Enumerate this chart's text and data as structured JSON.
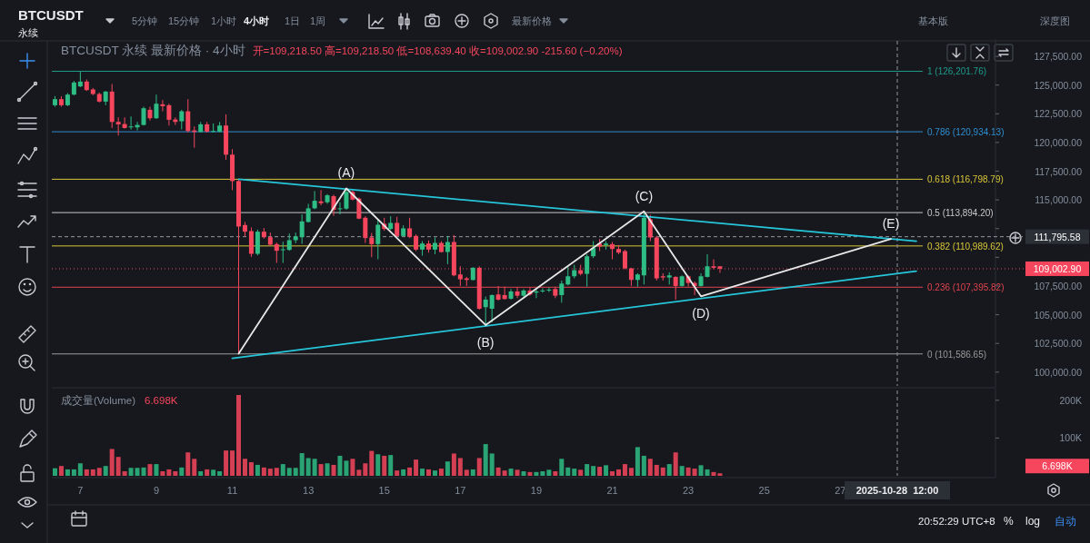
{
  "chart_data": [
    {
      "type": "candlestick",
      "title": "BTCUSDT 永续 最新价格 · 4小时",
      "subtitle": "开=109,218.50 高=109,218.50 低=108,639.40 收=109,002.90 -215.60 (−0.20%)",
      "tick_labels": "y",
      "xlim": [
        "2025-10-06T06:00",
        "2025-10-31T02:00"
      ],
      "ylim": [
        98800,
        128850
      ],
      "yticks": [
        {
          "value": 100000,
          "label": "100,000.00"
        },
        {
          "value": 102500,
          "label": "102,500.00"
        },
        {
          "value": 105000,
          "label": "105,000.00"
        },
        {
          "value": 107500,
          "label": "107,500.00"
        },
        {
          "value": 110000,
          "label": null
        },
        {
          "value": 112500,
          "label": null
        },
        {
          "value": 115000,
          "label": "115,000.00"
        },
        {
          "value": 117500,
          "label": "117,500.00"
        },
        {
          "value": 120000,
          "label": "120,000.00"
        },
        {
          "value": 122500,
          "label": "122,500.00"
        },
        {
          "value": 125000,
          "label": "125,000.00"
        },
        {
          "value": 127500,
          "label": "127,500.00"
        }
      ],
      "x": [
        "2025-10-06T08:00",
        "2025-10-06T12:00",
        "2025-10-06T16:00",
        "2025-10-06T20:00",
        "2025-10-07T00:00",
        "2025-10-07T04:00",
        "2025-10-07T08:00",
        "2025-10-07T12:00",
        "2025-10-07T16:00",
        "2025-10-07T20:00",
        "2025-10-08T00:00",
        "2025-10-08T04:00",
        "2025-10-08T08:00",
        "2025-10-08T12:00",
        "2025-10-08T16:00",
        "2025-10-08T20:00",
        "2025-10-09T00:00",
        "2025-10-09T04:00",
        "2025-10-09T08:00",
        "2025-10-09T12:00",
        "2025-10-09T16:00",
        "2025-10-09T20:00",
        "2025-10-10T00:00",
        "2025-10-10T04:00",
        "2025-10-10T08:00",
        "2025-10-10T12:00",
        "2025-10-10T16:00",
        "2025-10-10T20:00",
        "2025-10-11T00:00",
        "2025-10-11T04:00",
        "2025-10-11T08:00",
        "2025-10-11T12:00",
        "2025-10-11T16:00",
        "2025-10-11T20:00",
        "2025-10-12T00:00",
        "2025-10-12T04:00",
        "2025-10-12T08:00",
        "2025-10-12T12:00",
        "2025-10-12T16:00",
        "2025-10-12T20:00",
        "2025-10-13T00:00",
        "2025-10-13T04:00",
        "2025-10-13T08:00",
        "2025-10-13T12:00",
        "2025-10-13T16:00",
        "2025-10-13T20:00",
        "2025-10-14T00:00",
        "2025-10-14T04:00",
        "2025-10-14T08:00",
        "2025-10-14T12:00",
        "2025-10-14T16:00",
        "2025-10-14T20:00",
        "2025-10-15T00:00",
        "2025-10-15T04:00",
        "2025-10-15T08:00",
        "2025-10-15T12:00",
        "2025-10-15T16:00",
        "2025-10-15T20:00",
        "2025-10-16T00:00",
        "2025-10-16T04:00",
        "2025-10-16T08:00",
        "2025-10-16T12:00",
        "2025-10-16T16:00",
        "2025-10-16T20:00",
        "2025-10-17T00:00",
        "2025-10-17T04:00",
        "2025-10-17T08:00",
        "2025-10-17T12:00",
        "2025-10-17T16:00",
        "2025-10-17T20:00",
        "2025-10-18T00:00",
        "2025-10-18T04:00",
        "2025-10-18T08:00",
        "2025-10-18T12:00",
        "2025-10-18T16:00",
        "2025-10-18T20:00",
        "2025-10-19T00:00",
        "2025-10-19T04:00",
        "2025-10-19T08:00",
        "2025-10-19T12:00",
        "2025-10-19T16:00",
        "2025-10-19T20:00",
        "2025-10-20T00:00",
        "2025-10-20T04:00",
        "2025-10-20T08:00",
        "2025-10-20T12:00",
        "2025-10-20T16:00",
        "2025-10-20T20:00",
        "2025-10-21T00:00",
        "2025-10-21T04:00",
        "2025-10-21T08:00",
        "2025-10-21T12:00",
        "2025-10-21T16:00",
        "2025-10-21T20:00",
        "2025-10-22T00:00",
        "2025-10-22T04:00",
        "2025-10-22T08:00",
        "2025-10-22T12:00",
        "2025-10-22T16:00",
        "2025-10-22T20:00",
        "2025-10-23T00:00",
        "2025-10-23T04:00",
        "2025-10-23T08:00",
        "2025-10-23T12:00",
        "2025-10-23T16:00",
        "2025-10-23T20:00"
      ],
      "ohlc": [
        [
          123245,
          124037,
          123113,
          123773
        ],
        [
          123773,
          124037,
          123113,
          123245
        ],
        [
          123245,
          124301,
          123166,
          124169
        ],
        [
          124169,
          125357,
          124116,
          125225
        ],
        [
          124882,
          126150,
          124829,
          125304
        ],
        [
          125304,
          125489,
          124486,
          124565
        ],
        [
          124618,
          124750,
          124116,
          124222
        ],
        [
          124222,
          124354,
          123482,
          123562
        ],
        [
          123562,
          124486,
          123245,
          124433
        ],
        [
          124433,
          125093,
          121264,
          121792
        ],
        [
          121792,
          122188,
          120604,
          121581
        ],
        [
          121607,
          122188,
          121200,
          121264
        ],
        [
          121317,
          122267,
          121132,
          121396
        ],
        [
          121317,
          121792,
          121053,
          121528
        ],
        [
          121528,
          123113,
          121475,
          122980
        ],
        [
          122848,
          123113,
          121924,
          122109
        ],
        [
          122109,
          124169,
          122056,
          123377
        ],
        [
          123324,
          123694,
          122716,
          123166
        ],
        [
          123245,
          123377,
          121475,
          121977
        ],
        [
          122003,
          122188,
          121528,
          121792
        ],
        [
          121845,
          122848,
          121132,
          122716
        ],
        [
          122716,
          123773,
          120868,
          121000
        ],
        [
          121053,
          121396,
          119547,
          120921
        ],
        [
          120921,
          121792,
          120868,
          121581
        ],
        [
          121581,
          121792,
          120868,
          120947
        ],
        [
          120947,
          121660,
          120868,
          121000
        ],
        [
          120947,
          121792,
          120868,
          121475
        ],
        [
          121475,
          122452,
          118491,
          118940
        ],
        [
          118940,
          119415,
          115850,
          116642
        ],
        [
          116642,
          116774,
          101586.65,
          112680
        ],
        [
          112812,
          113077,
          111809,
          112232
        ],
        [
          112284,
          112601,
          110040,
          110304
        ],
        [
          110304,
          112416,
          110172,
          112232
        ],
        [
          112232,
          112548,
          111624,
          111756
        ],
        [
          111756,
          112152,
          111017,
          111096
        ],
        [
          111149,
          111281,
          109512,
          110568
        ],
        [
          110647,
          111360,
          109512,
          110700
        ],
        [
          110647,
          112073,
          110568,
          111492
        ],
        [
          111492,
          112152,
          111228,
          111809
        ],
        [
          111756,
          113737,
          111175,
          113130
        ],
        [
          113077,
          114661,
          113024,
          114265
        ],
        [
          114265,
          115771,
          114186,
          114925
        ],
        [
          114872,
          115850,
          114529,
          114714
        ],
        [
          114793,
          115507,
          114661,
          115401
        ],
        [
          115322,
          115454,
          113605,
          114133
        ],
        [
          114186,
          114793,
          113737,
          114265
        ],
        [
          114238,
          116007,
          114133,
          115690
        ],
        [
          115690,
          115822,
          114951,
          115030
        ],
        [
          115109,
          115215,
          113313,
          113366
        ],
        [
          113445,
          113577,
          111253,
          111676
        ],
        [
          111728,
          112125,
          110012,
          111148
        ],
        [
          111148,
          113313,
          109827,
          112838
        ],
        [
          112917,
          113445,
          112310,
          112468
        ],
        [
          112468,
          113577,
          112389,
          112996
        ],
        [
          112996,
          113524,
          111781,
          111861
        ],
        [
          111861,
          112785,
          111781,
          112521
        ],
        [
          112521,
          113445,
          111676,
          111781
        ],
        [
          111861,
          111993,
          110540,
          110672
        ],
        [
          110672,
          111412,
          110144,
          111200
        ],
        [
          111200,
          111465,
          110408,
          110672
        ],
        [
          110672,
          111729,
          110276,
          111253
        ],
        [
          111253,
          111412,
          110408,
          110461
        ],
        [
          110461,
          111861,
          109405,
          111333
        ],
        [
          111333,
          111940,
          108348,
          108427
        ],
        [
          108507,
          109220,
          107503,
          108084
        ],
        [
          108163,
          108295,
          107503,
          108031
        ],
        [
          108031,
          109141,
          107978,
          109088
        ],
        [
          109088,
          109220,
          105443,
          105522
        ],
        [
          105654,
          106579,
          103937,
          106315
        ],
        [
          105522,
          106763,
          104334,
          106711
        ],
        [
          106763,
          107503,
          106236,
          106315
        ],
        [
          106711,
          107450,
          106315,
          106368
        ],
        [
          106394,
          107239,
          106315,
          107028
        ],
        [
          107028,
          107371,
          106447,
          106658
        ],
        [
          106658,
          107239,
          106500,
          107107
        ],
        [
          107107,
          107371,
          106658,
          106763
        ],
        [
          106922,
          107239,
          106447,
          107028
        ],
        [
          107028,
          107292,
          106922,
          107107
        ],
        [
          107133,
          107371,
          106975,
          107186
        ],
        [
          107239,
          107450,
          106447,
          106658
        ],
        [
          106711,
          107978,
          106050,
          107714
        ],
        [
          107635,
          109220,
          107556,
          108348
        ],
        [
          108348,
          109352,
          108163,
          108876
        ],
        [
          108876,
          109352,
          108427,
          108560
        ],
        [
          108560,
          110276,
          107450,
          110091
        ],
        [
          110091,
          111412,
          109933,
          110804
        ],
        [
          111200,
          111597,
          110540,
          110936
        ],
        [
          111068,
          111412,
          110672,
          111200
        ],
        [
          111148,
          111333,
          109827,
          110725
        ],
        [
          110725,
          111068,
          110276,
          110408
        ],
        [
          110540,
          110672,
          108955,
          109035
        ],
        [
          109035,
          109088,
          107503,
          108031
        ],
        [
          108031,
          108612,
          107450,
          108507
        ],
        [
          108427,
          113973,
          107635,
          113445
        ],
        [
          113313,
          113709,
          111412,
          111728
        ],
        [
          111728,
          111861,
          107978,
          108163
        ],
        [
          108348,
          108612,
          107978,
          108242
        ],
        [
          108242,
          108691,
          107635,
          108427
        ],
        [
          108295,
          108348,
          106315,
          107503
        ],
        [
          107503,
          108427,
          107450,
          108348
        ],
        [
          108348,
          108427,
          107450,
          107767
        ],
        [
          107767,
          107899,
          106711,
          107503
        ],
        [
          107503,
          108612,
          107450,
          108348
        ],
        [
          108295,
          110276,
          108242,
          109220
        ],
        [
          109220,
          109827,
          108955,
          109088
        ],
        [
          109218.5,
          109218.5,
          108639.4,
          109002.9
        ]
      ],
      "colors": [
        "#2ebd85",
        "#f6465d",
        "#2ebd85",
        "#2ebd85",
        "#2ebd85",
        "#f6465d",
        "#f6465d",
        "#f6465d",
        "#2ebd85",
        "#f6465d",
        "#f6465d",
        "#f6465d",
        "#2ebd85",
        "#2ebd85",
        "#2ebd85",
        "#f6465d",
        "#2ebd85",
        "#f6465d",
        "#f6465d",
        "#f6465d",
        "#2ebd85",
        "#f6465d",
        "#f6465d",
        "#2ebd85",
        "#f6465d",
        "#2ebd85",
        "#2ebd85",
        "#f6465d",
        "#f6465d",
        "#f6465d",
        "#f6465d",
        "#f6465d",
        "#2ebd85",
        "#f6465d",
        "#f6465d",
        "#f6465d",
        "#2ebd85",
        "#2ebd85",
        "#2ebd85",
        "#2ebd85",
        "#2ebd85",
        "#2ebd85",
        "#f6465d",
        "#2ebd85",
        "#f6465d",
        "#2ebd85",
        "#2ebd85",
        "#f6465d",
        "#f6465d",
        "#f6465d",
        "#f6465d",
        "#2ebd85",
        "#f6465d",
        "#2ebd85",
        "#f6465d",
        "#2ebd85",
        "#f6465d",
        "#f6465d",
        "#2ebd85",
        "#f6465d",
        "#2ebd85",
        "#f6465d",
        "#2ebd85",
        "#f6465d",
        "#f6465d",
        "#f6465d",
        "#2ebd85",
        "#f6465d",
        "#2ebd85",
        "#2ebd85",
        "#f6465d",
        "#f6465d",
        "#2ebd85",
        "#f6465d",
        "#2ebd85",
        "#f6465d",
        "#2ebd85",
        "#2ebd85",
        "#2ebd85",
        "#f6465d",
        "#2ebd85",
        "#2ebd85",
        "#2ebd85",
        "#f6465d",
        "#2ebd85",
        "#2ebd85",
        "#f6465d",
        "#2ebd85",
        "#f6465d",
        "#f6465d",
        "#f6465d",
        "#f6465d",
        "#2ebd85",
        "#2ebd85",
        "#f6465d",
        "#f6465d",
        "#f6465d",
        "#2ebd85",
        "#f6465d",
        "#2ebd85",
        "#f6465d",
        "#f6465d",
        "#2ebd85",
        "#2ebd85",
        "#f6465d",
        "#f6465d"
      ],
      "series": [
        {
          "type": "line",
          "color": "#26c6da",
          "x": [
            "2025-10-11T04:00",
            "2025-10-29T00:00"
          ],
          "values": [
            116800,
            111400
          ]
        },
        {
          "type": "line",
          "color": "#26c6da",
          "x": [
            "2025-10-11T00:00",
            "2025-10-29T00:00"
          ],
          "values": [
            101200,
            108800
          ]
        },
        {
          "type": "line",
          "color": "#e8e8e8",
          "x": [
            "2025-10-11T04:00",
            "2025-10-14T00:00",
            "2025-10-17T16:00",
            "2025-10-21T20:00",
            "2025-10-23T08:00",
            "2025-10-28T08:00"
          ],
          "values": [
            101600,
            116000,
            104100,
            114000,
            106600,
            111600
          ]
        }
      ],
      "ref_lines": [
        {
          "axis": "y",
          "value": 126201.76,
          "label": "1 (126,201.76)",
          "color": "#1e9c8c"
        },
        {
          "axis": "y",
          "value": 120934.13,
          "label": "0.786 (120,934.13)",
          "color": "#2f8fd0"
        },
        {
          "axis": "y",
          "value": 116798.79,
          "label": "0.618 (116,798.79)",
          "color": "#d9c53a"
        },
        {
          "axis": "y",
          "value": 113894.2,
          "label": "0.5 (113,894.20)",
          "color": "#c8c8c8"
        },
        {
          "axis": "y",
          "value": 110989.62,
          "label": "0.382 (110,989.62)",
          "color": "#d9c53a"
        },
        {
          "axis": "y",
          "value": 107395.82,
          "label": "0.236 (107,395.82)",
          "color": "#e0434f"
        },
        {
          "axis": "y",
          "value": 101586.65,
          "label": "0 (101,586.65)",
          "color": "#9a9a9a"
        },
        {
          "axis": "y",
          "value": 109002.9,
          "label": "109,002.90",
          "color": "#f6465d",
          "line_style": "dotted"
        },
        {
          "axis": "y",
          "value": 111795.58,
          "label": "111,795.58",
          "color": "#9598a1",
          "line_style": "dashed"
        },
        {
          "axis": "x",
          "value": "2025-10-28T12:00",
          "color": "#9598a1",
          "line_style": "dashed"
        }
      ],
      "annotations": [
        {
          "text": "(A)",
          "x": "2025-10-14T00:00",
          "y": 116000
        },
        {
          "text": "(B)",
          "x": "2025-10-17T16:00",
          "y": 104100
        },
        {
          "text": "(C)",
          "x": "2025-10-21T20:00",
          "y": 114000
        },
        {
          "text": "(D)",
          "x": "2025-10-23T08:00",
          "y": 106600
        },
        {
          "text": "(E)",
          "x": "2025-10-28T08:00",
          "y": 111600
        }
      ]
    },
    {
      "type": "bar",
      "title": "成交量(Volume)",
      "xlim": [
        "2025-10-06T06:00",
        "2025-10-31T02:00"
      ],
      "xticks": [
        {
          "value": "2025-10-07",
          "label": "7"
        },
        {
          "value": "2025-10-09",
          "label": "9"
        },
        {
          "value": "2025-10-11",
          "label": "11"
        },
        {
          "value": "2025-10-13",
          "label": "13"
        },
        {
          "value": "2025-10-15",
          "label": "15"
        },
        {
          "value": "2025-10-17",
          "label": "17"
        },
        {
          "value": "2025-10-19",
          "label": "19"
        },
        {
          "value": "2025-10-21",
          "label": "21"
        },
        {
          "value": "2025-10-23",
          "label": "23"
        },
        {
          "value": "2025-10-25",
          "label": "25"
        },
        {
          "value": "2025-10-27",
          "label": "27"
        }
      ],
      "ylim": [
        0,
        226000
      ],
      "yticks": [
        {
          "value": 100000,
          "label": "100K"
        },
        {
          "value": 200000,
          "label": "200K"
        }
      ],
      "x": [
        "2025-10-06T08:00",
        "2025-10-06T12:00",
        "2025-10-06T16:00",
        "2025-10-06T20:00",
        "2025-10-07T00:00",
        "2025-10-07T04:00",
        "2025-10-07T08:00",
        "2025-10-07T12:00",
        "2025-10-07T16:00",
        "2025-10-07T20:00",
        "2025-10-08T00:00",
        "2025-10-08T04:00",
        "2025-10-08T08:00",
        "2025-10-08T12:00",
        "2025-10-08T16:00",
        "2025-10-08T20:00",
        "2025-10-09T00:00",
        "2025-10-09T04:00",
        "2025-10-09T08:00",
        "2025-10-09T12:00",
        "2025-10-09T16:00",
        "2025-10-09T20:00",
        "2025-10-10T00:00",
        "2025-10-10T04:00",
        "2025-10-10T08:00",
        "2025-10-10T12:00",
        "2025-10-10T16:00",
        "2025-10-10T20:00",
        "2025-10-11T00:00",
        "2025-10-11T04:00",
        "2025-10-11T08:00",
        "2025-10-11T12:00",
        "2025-10-11T16:00",
        "2025-10-11T20:00",
        "2025-10-12T00:00",
        "2025-10-12T04:00",
        "2025-10-12T08:00",
        "2025-10-12T12:00",
        "2025-10-12T16:00",
        "2025-10-12T20:00",
        "2025-10-13T00:00",
        "2025-10-13T04:00",
        "2025-10-13T08:00",
        "2025-10-13T12:00",
        "2025-10-13T16:00",
        "2025-10-13T20:00",
        "2025-10-14T00:00",
        "2025-10-14T04:00",
        "2025-10-14T08:00",
        "2025-10-14T12:00",
        "2025-10-14T16:00",
        "2025-10-14T20:00",
        "2025-10-15T00:00",
        "2025-10-15T04:00",
        "2025-10-15T08:00",
        "2025-10-15T12:00",
        "2025-10-15T16:00",
        "2025-10-15T20:00",
        "2025-10-16T00:00",
        "2025-10-16T04:00",
        "2025-10-16T08:00",
        "2025-10-16T12:00",
        "2025-10-16T16:00",
        "2025-10-16T20:00",
        "2025-10-17T00:00",
        "2025-10-17T04:00",
        "2025-10-17T08:00",
        "2025-10-17T12:00",
        "2025-10-17T16:00",
        "2025-10-17T20:00",
        "2025-10-18T00:00",
        "2025-10-18T04:00",
        "2025-10-18T08:00",
        "2025-10-18T12:00",
        "2025-10-18T16:00",
        "2025-10-18T20:00",
        "2025-10-19T00:00",
        "2025-10-19T04:00",
        "2025-10-19T08:00",
        "2025-10-19T12:00",
        "2025-10-19T16:00",
        "2025-10-19T20:00",
        "2025-10-20T00:00",
        "2025-10-20T04:00",
        "2025-10-20T08:00",
        "2025-10-20T12:00",
        "2025-10-20T16:00",
        "2025-10-20T20:00",
        "2025-10-21T00:00",
        "2025-10-21T04:00",
        "2025-10-21T08:00",
        "2025-10-21T12:00",
        "2025-10-21T16:00",
        "2025-10-21T20:00",
        "2025-10-22T00:00",
        "2025-10-22T04:00",
        "2025-10-22T08:00",
        "2025-10-22T12:00",
        "2025-10-22T16:00",
        "2025-10-22T20:00",
        "2025-10-23T00:00",
        "2025-10-23T04:00",
        "2025-10-23T08:00",
        "2025-10-23T12:00",
        "2025-10-23T16:00",
        "2025-10-23T20:00"
      ],
      "values": [
        20000,
        26000,
        17000,
        17000,
        33000,
        17000,
        17000,
        21000,
        26000,
        71000,
        50000,
        12000,
        21000,
        21000,
        22000,
        31000,
        31000,
        12000,
        17000,
        12000,
        22000,
        62000,
        45000,
        12000,
        17000,
        16000,
        12000,
        67000,
        67000,
        214000,
        45000,
        36000,
        29000,
        22000,
        19000,
        21000,
        31000,
        21000,
        21000,
        60000,
        47000,
        45000,
        31000,
        33000,
        29000,
        53000,
        40000,
        45000,
        16000,
        33000,
        66000,
        57000,
        53000,
        55000,
        14000,
        17000,
        22000,
        43000,
        19000,
        17000,
        14000,
        19000,
        38000,
        59000,
        47000,
        16000,
        17000,
        47000,
        84000,
        59000,
        22000,
        14000,
        19000,
        16000,
        12000,
        10000,
        10000,
        12000,
        16000,
        12000,
        45000,
        22000,
        19000,
        16000,
        31000,
        26000,
        24000,
        28000,
        12000,
        17000,
        31000,
        21000,
        76000,
        53000,
        45000,
        29000,
        22000,
        31000,
        62000,
        26000,
        22000,
        19000,
        28000,
        17000,
        10000,
        6698
      ],
      "colors": [
        "#2ebd85",
        "#f6465d",
        "#2ebd85",
        "#2ebd85",
        "#2ebd85",
        "#f6465d",
        "#f6465d",
        "#f6465d",
        "#2ebd85",
        "#f6465d",
        "#f6465d",
        "#f6465d",
        "#2ebd85",
        "#2ebd85",
        "#2ebd85",
        "#f6465d",
        "#2ebd85",
        "#f6465d",
        "#f6465d",
        "#f6465d",
        "#2ebd85",
        "#f6465d",
        "#f6465d",
        "#2ebd85",
        "#f6465d",
        "#2ebd85",
        "#2ebd85",
        "#f6465d",
        "#f6465d",
        "#f6465d",
        "#f6465d",
        "#f6465d",
        "#2ebd85",
        "#f6465d",
        "#f6465d",
        "#f6465d",
        "#2ebd85",
        "#2ebd85",
        "#2ebd85",
        "#2ebd85",
        "#2ebd85",
        "#2ebd85",
        "#f6465d",
        "#2ebd85",
        "#f6465d",
        "#2ebd85",
        "#2ebd85",
        "#f6465d",
        "#f6465d",
        "#f6465d",
        "#f6465d",
        "#2ebd85",
        "#f6465d",
        "#2ebd85",
        "#f6465d",
        "#2ebd85",
        "#f6465d",
        "#f6465d",
        "#2ebd85",
        "#f6465d",
        "#2ebd85",
        "#f6465d",
        "#2ebd85",
        "#f6465d",
        "#f6465d",
        "#f6465d",
        "#2ebd85",
        "#f6465d",
        "#2ebd85",
        "#2ebd85",
        "#f6465d",
        "#f6465d",
        "#2ebd85",
        "#f6465d",
        "#2ebd85",
        "#f6465d",
        "#2ebd85",
        "#2ebd85",
        "#2ebd85",
        "#f6465d",
        "#2ebd85",
        "#2ebd85",
        "#2ebd85",
        "#f6465d",
        "#2ebd85",
        "#2ebd85",
        "#f6465d",
        "#2ebd85",
        "#f6465d",
        "#f6465d",
        "#f6465d",
        "#f6465d",
        "#2ebd85",
        "#2ebd85",
        "#f6465d",
        "#f6465d",
        "#f6465d",
        "#2ebd85",
        "#f6465d",
        "#2ebd85",
        "#f6465d",
        "#f6465d",
        "#2ebd85",
        "#2ebd85",
        "#f6465d",
        "#f6465d"
      ],
      "ref_lines": [
        {
          "axis": "x",
          "value": "2025-10-28T12:00",
          "label": "2025-10-28  12:00",
          "color": "#9598a1",
          "line_style": "dashed"
        }
      ],
      "annotations": [
        "6.698K",
        "6.698K"
      ]
    },
    {
      "type": "other",
      "annotations": [
        "BTCUSDT",
        "永续",
        "5分钟",
        "15分钟",
        "1小时",
        "4小时",
        "1日",
        "1周",
        "最新价格",
        "基本版",
        "深度图",
        "20:52:29 UTC+8",
        "%",
        "log",
        "自动"
      ]
    }
  ]
}
